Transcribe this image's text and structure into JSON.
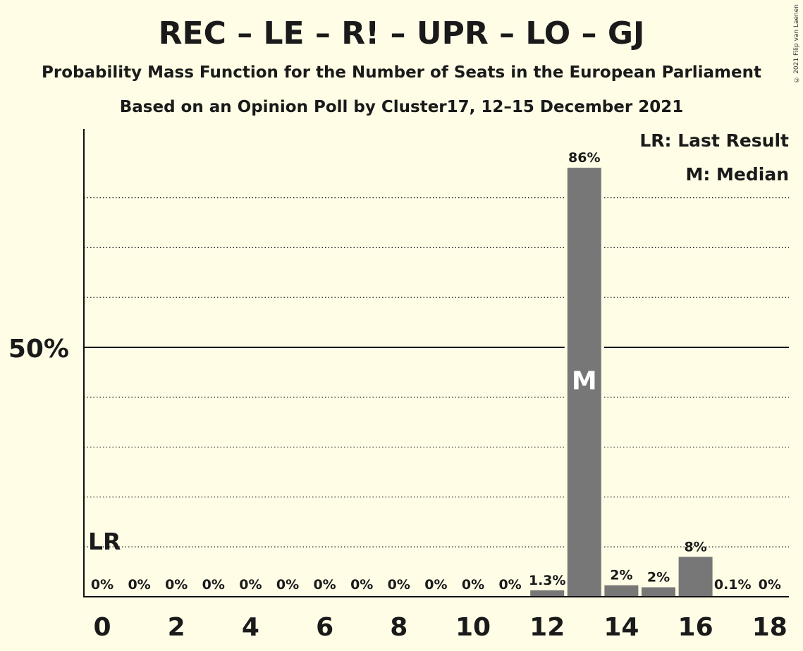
{
  "chart_data": {
    "type": "bar",
    "title": "REC – LE – R! – UPR – LO – GJ",
    "subtitle": "Probability Mass Function for the Number of Seats in the European Parliament",
    "subtitle2": "Based on an Opinion Poll by Cluster17, 12–15 December 2021",
    "copyright": "© 2021 Filip van Laenen",
    "legend": [
      "LR: Last Result",
      "M: Median"
    ],
    "xlabel": "",
    "ylabel": "",
    "ylim": [
      0,
      90
    ],
    "y_tick_label": "50%",
    "y_tick_value": 50,
    "gridlines": [
      10,
      20,
      30,
      40,
      60,
      70,
      80
    ],
    "x_tick_values": [
      0,
      2,
      4,
      6,
      8,
      10,
      12,
      14,
      16,
      18
    ],
    "x_tick_labels": [
      "0",
      "2",
      "4",
      "6",
      "8",
      "10",
      "12",
      "14",
      "16",
      "18"
    ],
    "categories": [
      0,
      1,
      2,
      3,
      4,
      5,
      6,
      7,
      8,
      9,
      10,
      11,
      12,
      13,
      14,
      15,
      16,
      17,
      18
    ],
    "values": [
      0,
      0,
      0,
      0,
      0,
      0,
      0,
      0,
      0,
      0,
      0,
      0,
      1.3,
      86,
      2.3,
      1.9,
      8,
      0.1,
      0
    ],
    "data_labels": [
      "0%",
      "0%",
      "0%",
      "0%",
      "0%",
      "0%",
      "0%",
      "0%",
      "0%",
      "0%",
      "0%",
      "0%",
      "1.3%",
      "86%",
      "2%",
      "2%",
      "8%",
      "0.1%",
      "0%"
    ],
    "last_result_seat": 0,
    "last_result_marker": "LR",
    "median_seat": 13,
    "median_marker": "M",
    "bar_color": "#777777",
    "background_color": "#fffde6"
  }
}
